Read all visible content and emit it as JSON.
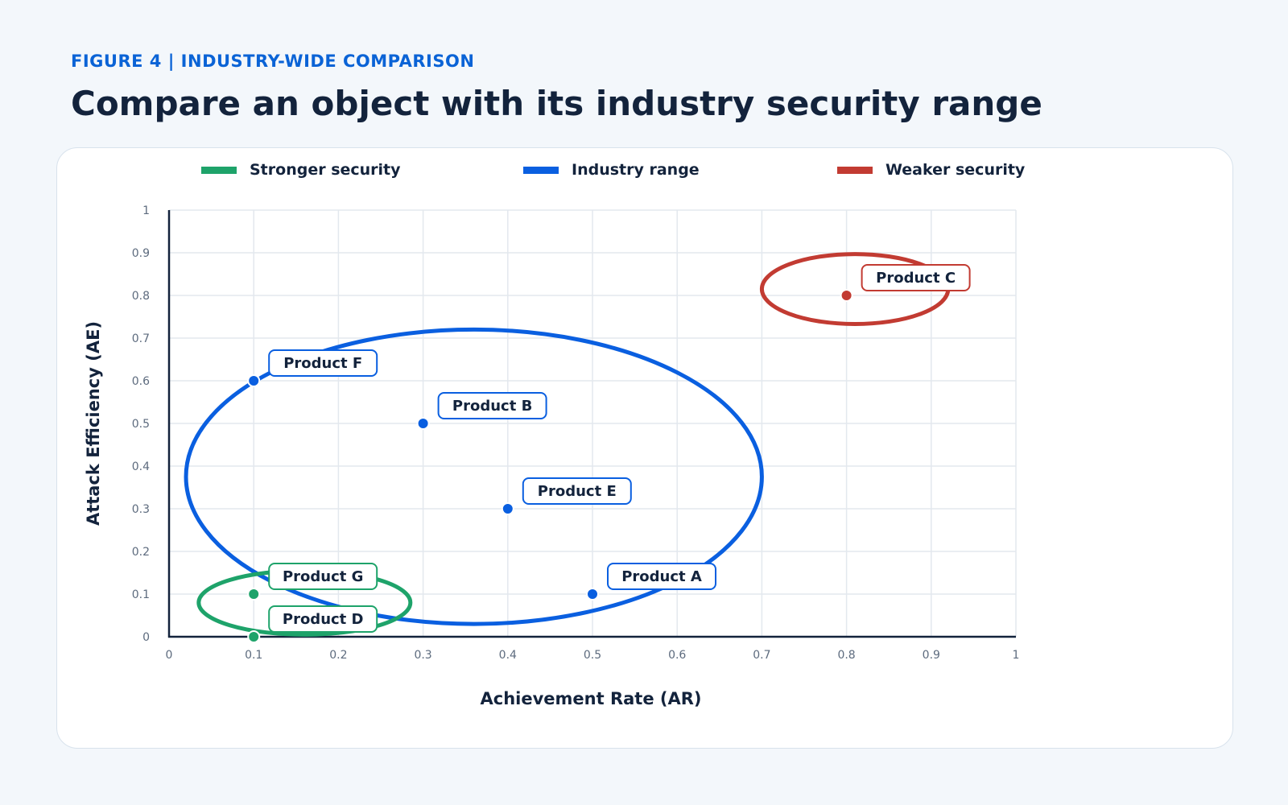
{
  "header": {
    "eyebrow": "FIGURE 4  |  INDUSTRY-WIDE COMPARISON",
    "title": "Compare an object with its industry security range"
  },
  "colors": {
    "stronger": "#1ea36a",
    "industry": "#0a5fe0",
    "weaker": "#c23b32"
  },
  "chart_data": {
    "type": "scatter",
    "xlabel": "Achievement Rate (AR)",
    "ylabel": "Attack Efficiency (AE)",
    "xlim": [
      0,
      1
    ],
    "ylim": [
      0,
      1
    ],
    "x_ticks": [
      "0",
      "0.1",
      "0.2",
      "0.3",
      "0.4",
      "0.5",
      "0.6",
      "0.7",
      "0.8",
      "0.9",
      "1"
    ],
    "y_ticks": [
      "0",
      "0.1",
      "0.2",
      "0.3",
      "0.4",
      "0.5",
      "0.6",
      "0.7",
      "0.8",
      "0.9",
      "1"
    ],
    "grid": true,
    "legend_position": "top",
    "legend": [
      {
        "key": "stronger",
        "label": "Stronger security"
      },
      {
        "key": "industry",
        "label": "Industry range"
      },
      {
        "key": "weaker",
        "label": "Weaker security"
      }
    ],
    "regions": [
      {
        "group": "industry",
        "cx": 0.36,
        "cy": 0.375,
        "rx": 0.34,
        "ry": 0.345
      },
      {
        "group": "weaker",
        "cx": 0.81,
        "cy": 0.815,
        "rx": 0.11,
        "ry": 0.082
      },
      {
        "group": "stronger",
        "cx": 0.16,
        "cy": 0.08,
        "rx": 0.125,
        "ry": 0.075
      }
    ],
    "points": [
      {
        "name": "Product A",
        "x": 0.5,
        "y": 0.1,
        "group": "industry"
      },
      {
        "name": "Product B",
        "x": 0.3,
        "y": 0.5,
        "group": "industry"
      },
      {
        "name": "Product C",
        "x": 0.8,
        "y": 0.8,
        "group": "weaker"
      },
      {
        "name": "Product D",
        "x": 0.1,
        "y": 0.0,
        "group": "stronger"
      },
      {
        "name": "Product E",
        "x": 0.4,
        "y": 0.3,
        "group": "industry"
      },
      {
        "name": "Product F",
        "x": 0.1,
        "y": 0.6,
        "group": "industry"
      },
      {
        "name": "Product G",
        "x": 0.1,
        "y": 0.1,
        "group": "stronger"
      }
    ]
  }
}
